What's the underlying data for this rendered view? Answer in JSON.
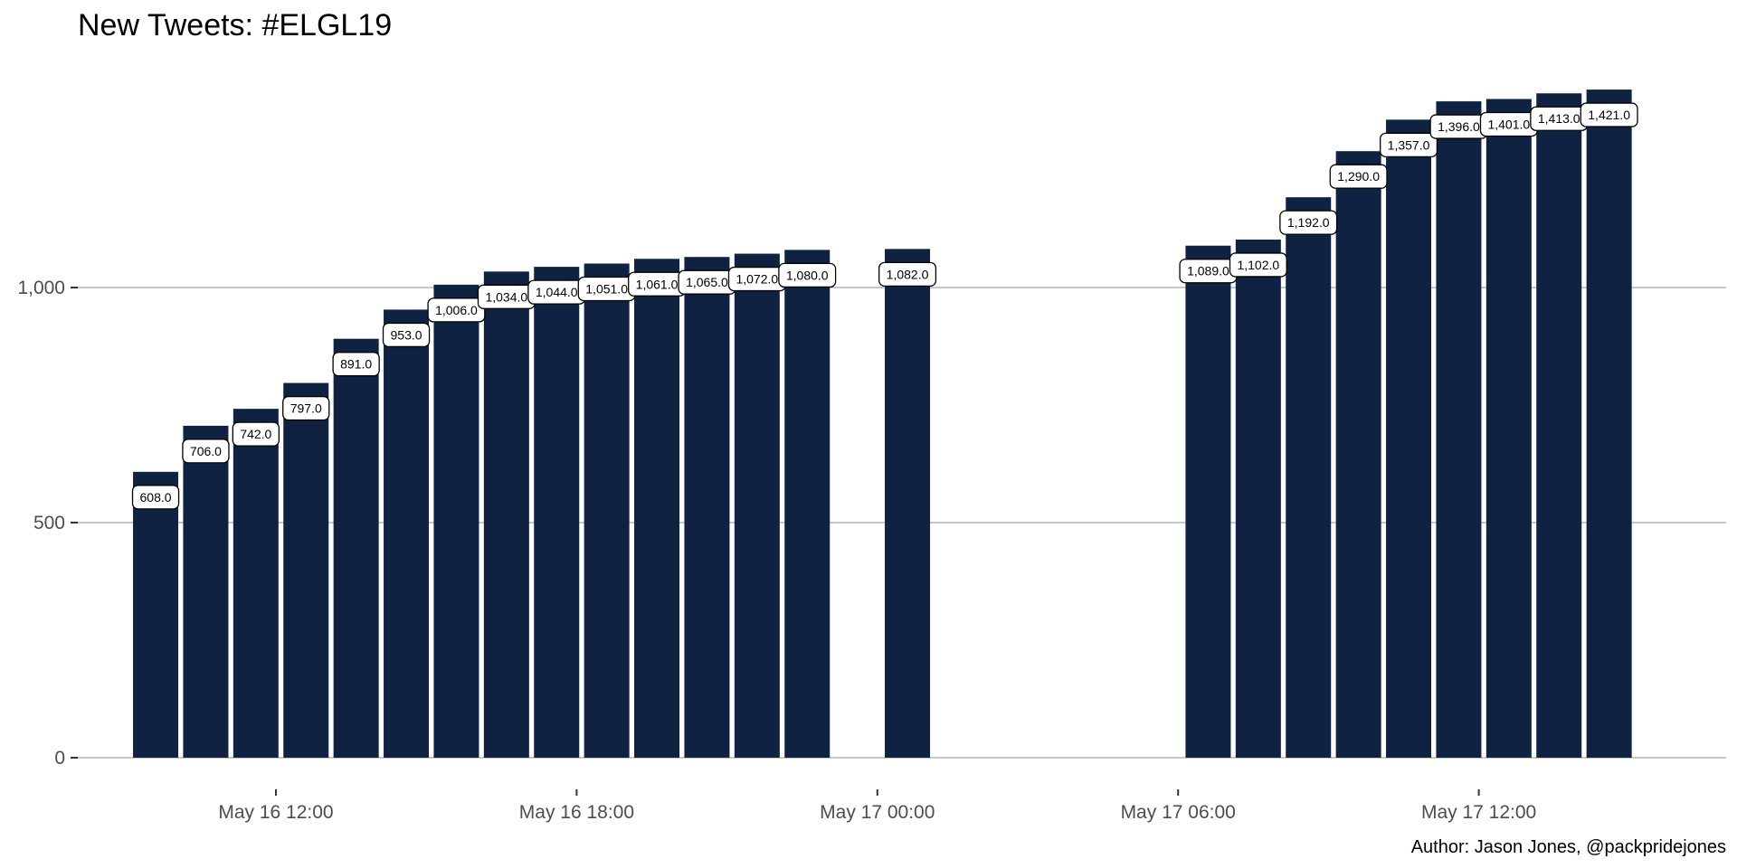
{
  "chart_data": {
    "type": "bar",
    "title": "New Tweets: #ELGL19",
    "caption": "Author: Jason Jones, @packpridejones",
    "xlabel": "",
    "ylabel": "",
    "ylim": [
      0,
      1480
    ],
    "y_ticks": [
      {
        "value": 0,
        "label": "0"
      },
      {
        "value": 500,
        "label": "500"
      },
      {
        "value": 1000,
        "label": "1,000"
      }
    ],
    "x_ticks": [
      {
        "hour": 12,
        "label": "May 16 12:00"
      },
      {
        "hour": 18,
        "label": "May 16 18:00"
      },
      {
        "hour": 24,
        "label": "May 17 00:00"
      },
      {
        "hour": 30,
        "label": "May 17 06:00"
      },
      {
        "hour": 36,
        "label": "May 17 12:00"
      }
    ],
    "x_unit": "hours since May 16 00:00",
    "bar_color": "#0f2242",
    "grid": true,
    "data": [
      {
        "hour": 9.6,
        "value": 608,
        "label": "608.0"
      },
      {
        "hour": 10.6,
        "value": 706,
        "label": "706.0"
      },
      {
        "hour": 11.6,
        "value": 742,
        "label": "742.0"
      },
      {
        "hour": 12.6,
        "value": 797,
        "label": "797.0"
      },
      {
        "hour": 13.6,
        "value": 891,
        "label": "891.0"
      },
      {
        "hour": 14.6,
        "value": 953,
        "label": "953.0"
      },
      {
        "hour": 15.6,
        "value": 1006,
        "label": "1,006.0"
      },
      {
        "hour": 16.6,
        "value": 1034,
        "label": "1,034.0"
      },
      {
        "hour": 17.6,
        "value": 1044,
        "label": "1,044.0"
      },
      {
        "hour": 18.6,
        "value": 1051,
        "label": "1,051.0"
      },
      {
        "hour": 19.6,
        "value": 1061,
        "label": "1,061.0"
      },
      {
        "hour": 20.6,
        "value": 1065,
        "label": "1,065.0"
      },
      {
        "hour": 21.6,
        "value": 1072,
        "label": "1,072.0"
      },
      {
        "hour": 22.6,
        "value": 1080,
        "label": "1,080.0"
      },
      {
        "hour": 24.6,
        "value": 1082,
        "label": "1,082.0"
      },
      {
        "hour": 30.6,
        "value": 1089,
        "label": "1,089.0"
      },
      {
        "hour": 31.6,
        "value": 1102,
        "label": "1,102.0"
      },
      {
        "hour": 32.6,
        "value": 1192,
        "label": "1,192.0"
      },
      {
        "hour": 33.6,
        "value": 1290,
        "label": "1,290.0"
      },
      {
        "hour": 34.6,
        "value": 1357,
        "label": "1,357.0"
      },
      {
        "hour": 35.6,
        "value": 1396,
        "label": "1,396.0"
      },
      {
        "hour": 36.6,
        "value": 1401,
        "label": "1,401.0"
      },
      {
        "hour": 37.6,
        "value": 1413,
        "label": "1,413.0"
      },
      {
        "hour": 38.6,
        "value": 1421,
        "label": "1,421.0"
      }
    ]
  }
}
